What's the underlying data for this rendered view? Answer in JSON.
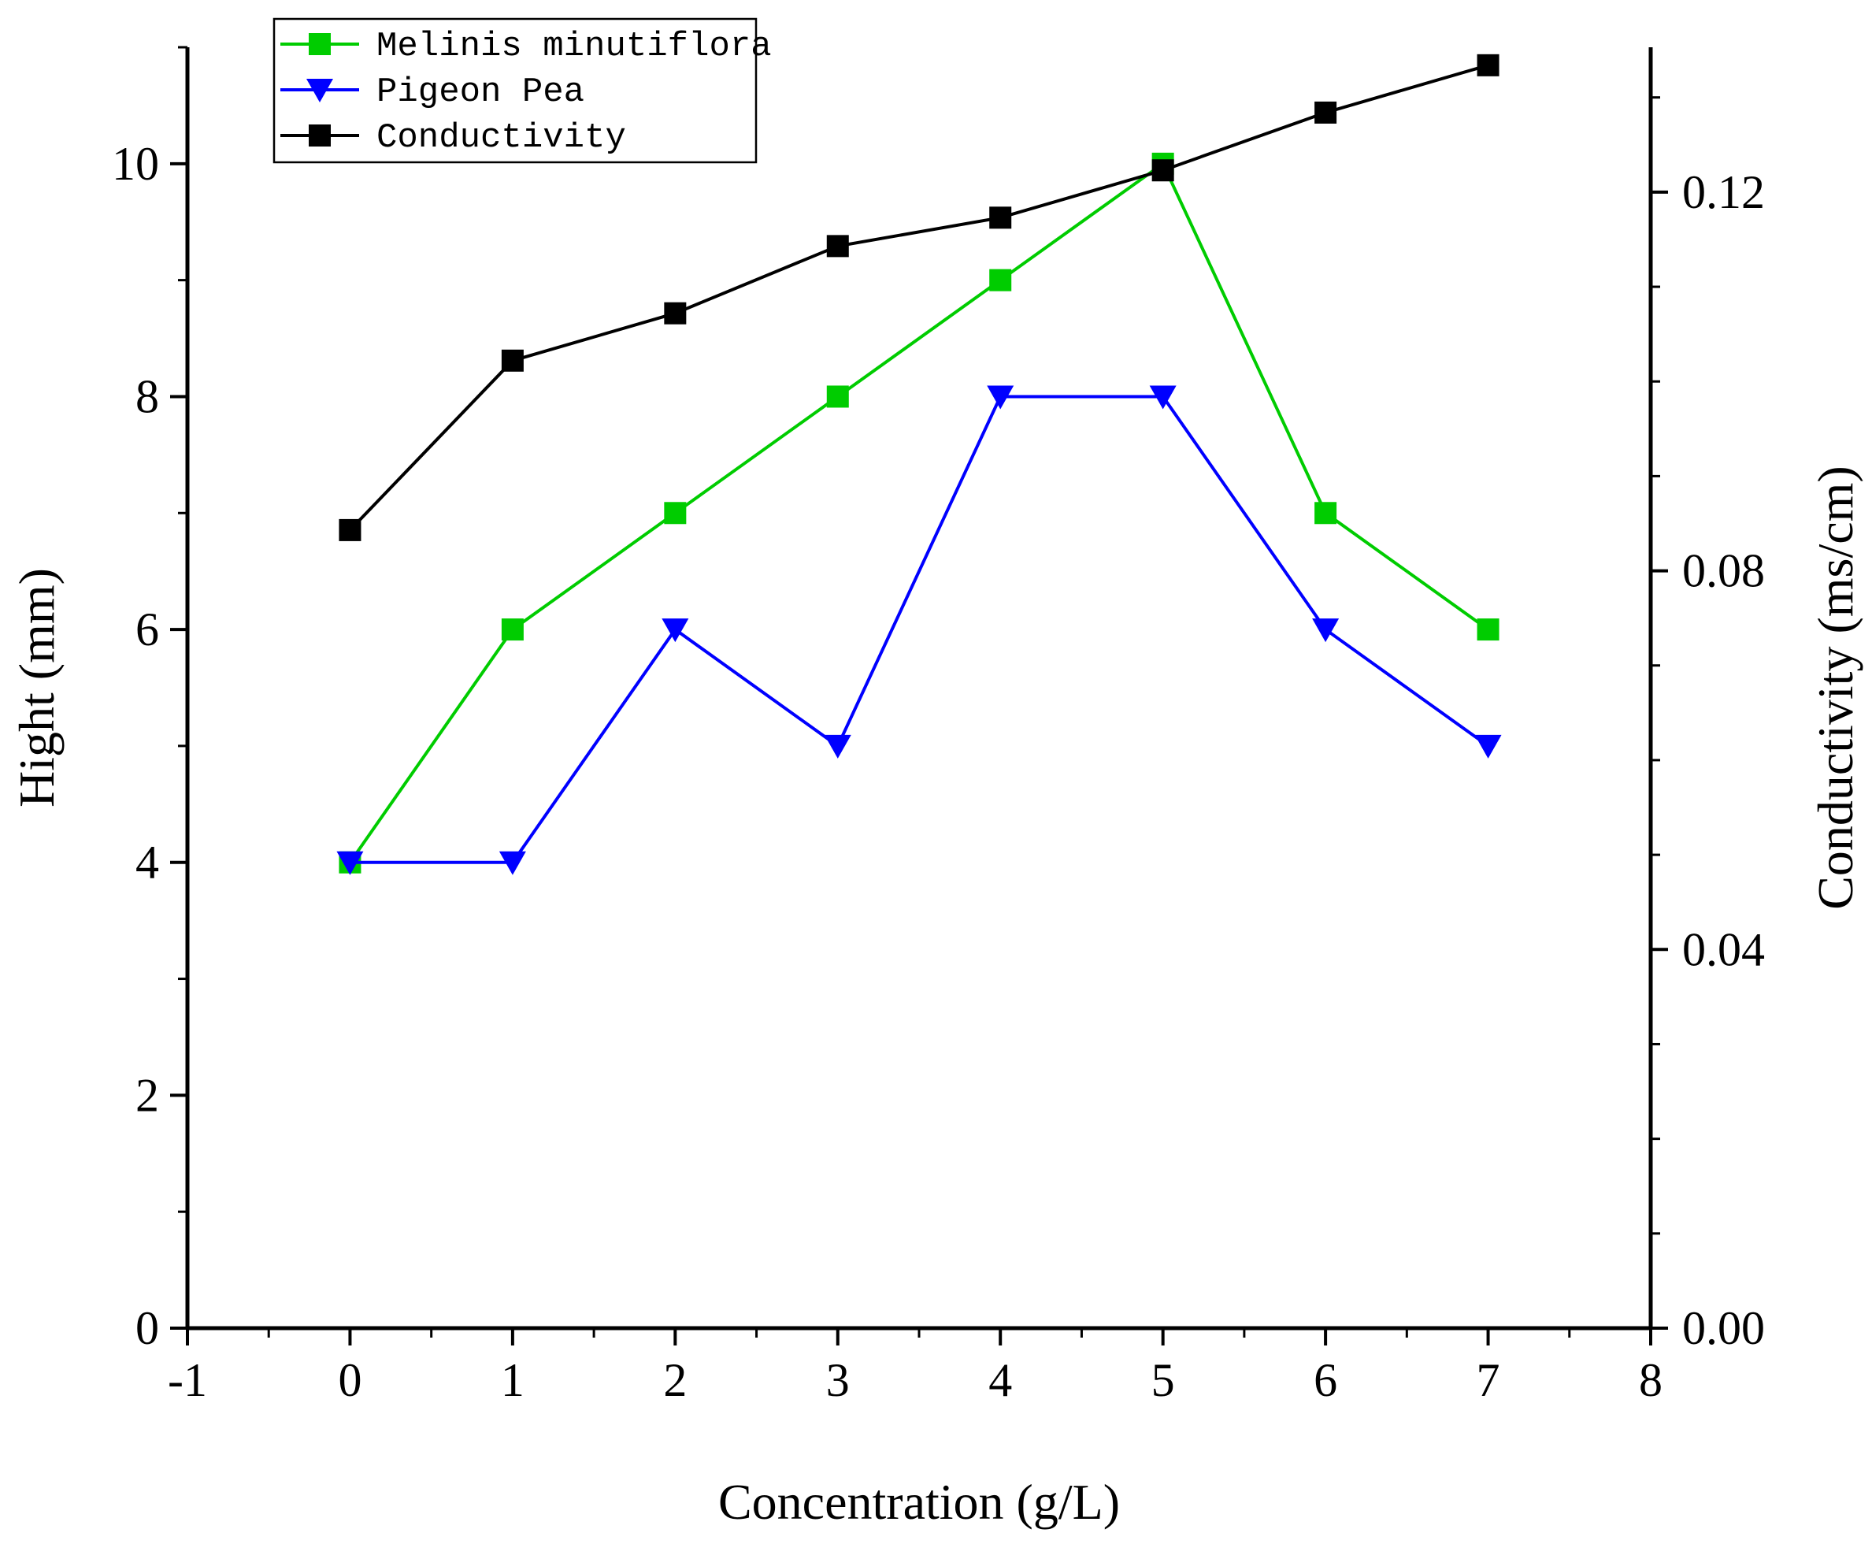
{
  "chart_data": {
    "type": "line",
    "xlabel": "Concentration (g/L)",
    "ylabel": "Hight (mm)",
    "y2label": "Conductivity (ms/cm)",
    "xlim": [
      -1,
      8
    ],
    "ylim": [
      0,
      11
    ],
    "y2lim": [
      0,
      0.1353
    ],
    "x_ticks": [
      -1,
      0,
      1,
      2,
      3,
      4,
      5,
      6,
      7,
      8
    ],
    "y_ticks": [
      0,
      2,
      4,
      6,
      8,
      10
    ],
    "y2_ticks": [
      "0.00",
      "0.04",
      "0.08",
      "0.12"
    ],
    "grid": false,
    "legend_position": "top-left",
    "x": [
      0,
      1,
      2,
      3,
      4,
      5,
      6,
      7
    ],
    "series": [
      {
        "name": "Melinis minutiflora",
        "axis": "left",
        "color": "#00cc00",
        "marker": "square",
        "values": [
          4,
          6,
          7,
          8,
          9,
          10,
          7,
          6
        ]
      },
      {
        "name": "Pigeon Pea",
        "axis": "left",
        "color": "#0000ff",
        "marker": "triangle-down",
        "values": [
          4,
          4,
          6,
          5,
          8,
          8,
          6,
          5
        ]
      },
      {
        "name": "Conductivity",
        "axis": "right",
        "color": "#000000",
        "marker": "square",
        "values": [
          0.0843,
          0.1022,
          0.1072,
          0.1143,
          0.1173,
          0.1223,
          0.1284,
          0.1334
        ]
      }
    ]
  }
}
